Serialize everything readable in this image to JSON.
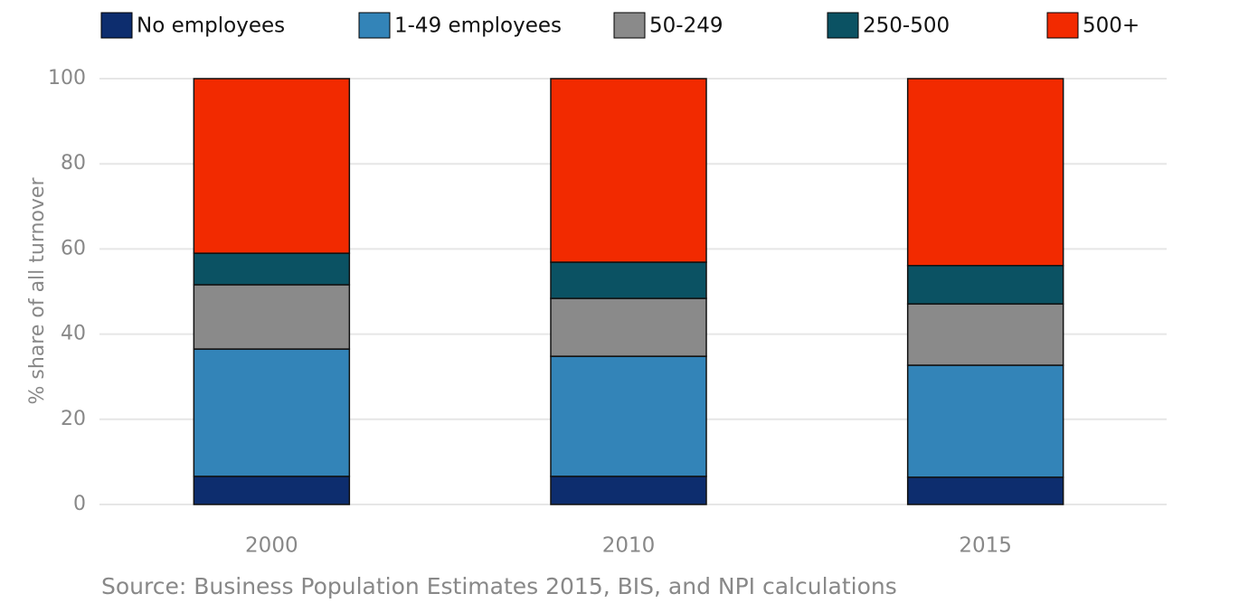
{
  "chart_data": {
    "type": "stacked_bar",
    "y_label": "% share of all turnover",
    "source": "Source: Business Population Estimates 2015, BIS, and NPI calculations",
    "categories": [
      "2000",
      "2010",
      "2015"
    ],
    "series": [
      {
        "name": "No employees",
        "color": "#0d2d6e",
        "values": [
          6.6,
          6.6,
          6.4
        ]
      },
      {
        "name": "1-49 employees",
        "color": "#3384b8",
        "values": [
          29.9,
          28.2,
          26.3
        ]
      },
      {
        "name": "50-249",
        "color": "#8a8a8a",
        "values": [
          15.1,
          13.6,
          14.4
        ]
      },
      {
        "name": "250-500",
        "color": "#0b5263",
        "values": [
          7.4,
          8.5,
          9.0
        ]
      },
      {
        "name": "500+",
        "color": "#f22a00",
        "values": [
          41.0,
          43.1,
          43.9
        ]
      }
    ],
    "ylim": [
      0,
      100
    ],
    "yticks": [
      0,
      20,
      40,
      60,
      80,
      100
    ],
    "grid": true
  }
}
